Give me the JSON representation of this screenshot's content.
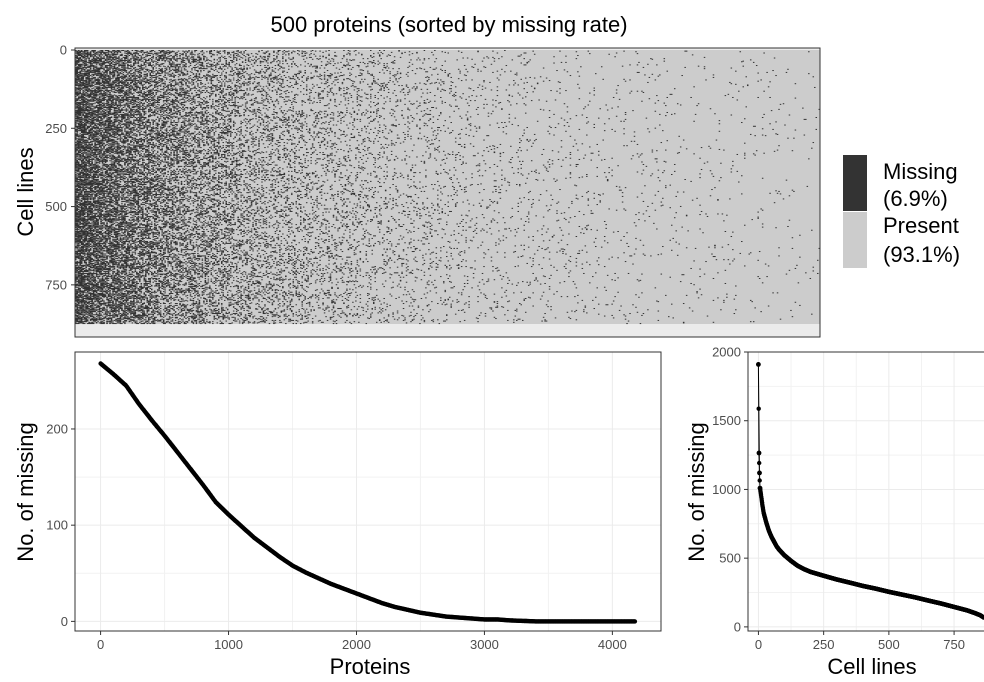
{
  "chart_data": [
    {
      "type": "heatmap",
      "title": "500 proteins (sorted by missing rate)",
      "ylabel": "Cell lines",
      "xlabel": "",
      "ylim": [
        0,
        875
      ],
      "yticks": [
        0,
        250,
        500,
        750
      ],
      "n_rows": 875,
      "n_cols": 500,
      "colors": {
        "missing": "#333333",
        "present": "#cccccc",
        "background": "#ebebeb"
      },
      "legend": {
        "position": "right",
        "entries": [
          {
            "label_line1": "Missing",
            "label_line2": "(6.9%)",
            "color": "#333333"
          },
          {
            "label_line1": "Present",
            "label_line2": "(93.1%)",
            "color": "#cccccc"
          }
        ]
      }
    },
    {
      "type": "scatter",
      "xlabel": "Proteins",
      "ylabel": "No. of missing",
      "xlim": [
        -200,
        4380
      ],
      "ylim": [
        -10,
        280
      ],
      "xticks": [
        0,
        1000,
        2000,
        3000,
        4000
      ],
      "yticks": [
        0,
        100,
        200
      ],
      "grid": true,
      "n_points": 4180,
      "curve_points": [
        [
          0,
          268
        ],
        [
          100,
          257
        ],
        [
          200,
          245
        ],
        [
          300,
          226
        ],
        [
          400,
          209
        ],
        [
          500,
          193
        ],
        [
          600,
          176
        ],
        [
          700,
          159
        ],
        [
          800,
          142
        ],
        [
          900,
          124
        ],
        [
          1000,
          111
        ],
        [
          1100,
          99
        ],
        [
          1200,
          87
        ],
        [
          1300,
          77
        ],
        [
          1400,
          67
        ],
        [
          1500,
          58
        ],
        [
          1600,
          51
        ],
        [
          1700,
          45
        ],
        [
          1800,
          39
        ],
        [
          1900,
          34
        ],
        [
          2000,
          29
        ],
        [
          2100,
          24
        ],
        [
          2200,
          19
        ],
        [
          2300,
          15
        ],
        [
          2400,
          12
        ],
        [
          2500,
          9
        ],
        [
          2600,
          7
        ],
        [
          2700,
          5
        ],
        [
          2800,
          4
        ],
        [
          2900,
          3
        ],
        [
          3000,
          2
        ],
        [
          3100,
          2
        ],
        [
          3200,
          1
        ],
        [
          3400,
          0
        ],
        [
          3600,
          0
        ],
        [
          3800,
          0
        ],
        [
          4000,
          0
        ],
        [
          4180,
          0
        ]
      ]
    },
    {
      "type": "scatter",
      "xlabel": "Cell lines",
      "ylabel": "No. of missing",
      "xlim": [
        -40,
        880
      ],
      "ylim": [
        -30,
        2000
      ],
      "xticks": [
        0,
        250,
        500,
        750
      ],
      "yticks": [
        0,
        500,
        1000,
        1500,
        2000
      ],
      "grid": true,
      "n_points": 875,
      "curve_points": [
        [
          0,
          1910
        ],
        [
          2,
          1265
        ],
        [
          4,
          1120
        ],
        [
          6,
          1010
        ],
        [
          10,
          960
        ],
        [
          15,
          890
        ],
        [
          20,
          830
        ],
        [
          30,
          760
        ],
        [
          40,
          700
        ],
        [
          50,
          655
        ],
        [
          60,
          620
        ],
        [
          70,
          585
        ],
        [
          80,
          560
        ],
        [
          100,
          520
        ],
        [
          125,
          480
        ],
        [
          150,
          445
        ],
        [
          175,
          420
        ],
        [
          200,
          400
        ],
        [
          250,
          372
        ],
        [
          300,
          345
        ],
        [
          350,
          322
        ],
        [
          400,
          298
        ],
        [
          450,
          278
        ],
        [
          500,
          255
        ],
        [
          550,
          235
        ],
        [
          600,
          215
        ],
        [
          650,
          192
        ],
        [
          700,
          170
        ],
        [
          750,
          145
        ],
        [
          800,
          120
        ],
        [
          830,
          100
        ],
        [
          850,
          85
        ],
        [
          870,
          60
        ],
        [
          875,
          30
        ]
      ]
    }
  ]
}
